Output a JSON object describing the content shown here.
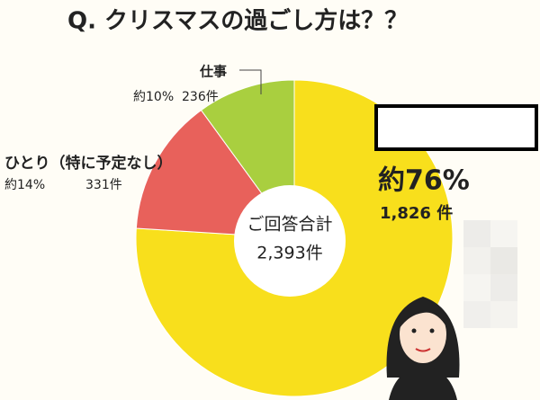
{
  "chart_data": {
    "type": "pie",
    "title": "Q. クリスマスの過ごし方は？？",
    "categories": [
      null,
      "ひとり（特に予定なし）",
      "仕事"
    ],
    "values": [
      76,
      14,
      10
    ],
    "value_labels": [
      "約76%",
      "約14%",
      "約10%"
    ],
    "count_labels": [
      "1,826 件",
      "331件",
      "236件"
    ],
    "colors": [
      "#f8df1c",
      "#e8615b",
      "#a9cf3f"
    ],
    "center_label": "ご回答合計",
    "total_label": "2,393件"
  }
}
